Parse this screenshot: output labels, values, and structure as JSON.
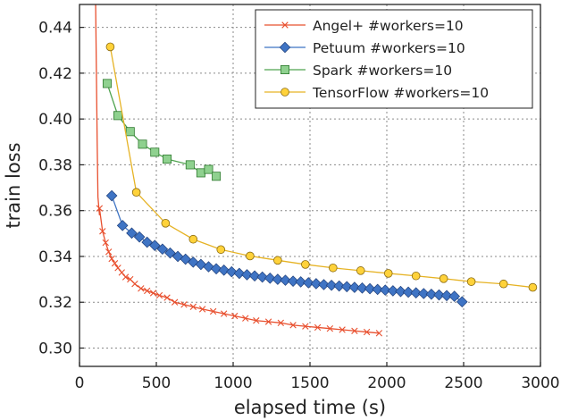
{
  "chart_data": {
    "type": "line",
    "title": "",
    "xlabel": "elapsed time (s)",
    "ylabel": "train loss",
    "xlim": [
      0,
      3000
    ],
    "ylim": [
      0.292,
      0.45
    ],
    "xticks": [
      0,
      500,
      1000,
      1500,
      2000,
      2500,
      3000
    ],
    "xtick_labels": [
      "0",
      "500",
      "1000",
      "1500",
      "2000",
      "2500",
      "3000"
    ],
    "yticks": [
      0.3,
      0.32,
      0.34,
      0.36,
      0.38,
      0.4,
      0.42,
      0.44
    ],
    "ytick_labels": [
      "0.30",
      "0.32",
      "0.34",
      "0.36",
      "0.38",
      "0.40",
      "0.42",
      "0.44"
    ],
    "grid": true,
    "legend_position": "top-right",
    "series": [
      {
        "name": "Angel+ #workers=10",
        "color": "#e8502f",
        "marker": "x",
        "line_x": [
          105,
          110,
          115,
          120,
          130
        ],
        "line_y": [
          0.45,
          0.42,
          0.39,
          0.366,
          0.358
        ],
        "x": [
          130,
          150,
          170,
          190,
          210,
          230,
          250,
          275,
          300,
          330,
          360,
          400,
          440,
          480,
          520,
          570,
          620,
          680,
          740,
          800,
          870,
          940,
          1010,
          1080,
          1150,
          1230,
          1310,
          1390,
          1470,
          1550,
          1630,
          1710,
          1790,
          1870,
          1950
        ],
        "y": [
          0.361,
          0.351,
          0.346,
          0.342,
          0.339,
          0.337,
          0.335,
          0.333,
          0.331,
          0.33,
          0.328,
          0.326,
          0.325,
          0.324,
          0.323,
          0.322,
          0.32,
          0.319,
          0.318,
          0.317,
          0.316,
          0.315,
          0.314,
          0.313,
          0.312,
          0.3115,
          0.311,
          0.31,
          0.3095,
          0.309,
          0.3085,
          0.308,
          0.3075,
          0.307,
          0.3065
        ]
      },
      {
        "name": "Petuum #workers=10",
        "color": "#3f74c4",
        "marker": "diamond",
        "x": [
          210,
          280,
          340,
          390,
          440,
          490,
          540,
          590,
          640,
          690,
          740,
          790,
          840,
          890,
          940,
          990,
          1040,
          1090,
          1140,
          1190,
          1240,
          1290,
          1340,
          1390,
          1440,
          1490,
          1540,
          1590,
          1640,
          1690,
          1740,
          1790,
          1840,
          1890,
          1940,
          1990,
          2040,
          2090,
          2140,
          2190,
          2240,
          2290,
          2340,
          2390,
          2440,
          2490
        ],
        "y": [
          0.3665,
          0.3535,
          0.3502,
          0.3485,
          0.3462,
          0.3448,
          0.3432,
          0.3415,
          0.34,
          0.3388,
          0.3375,
          0.3365,
          0.3355,
          0.3346,
          0.334,
          0.3333,
          0.3326,
          0.332,
          0.3315,
          0.331,
          0.3305,
          0.33,
          0.3296,
          0.3292,
          0.3289,
          0.3285,
          0.3281,
          0.3277,
          0.3274,
          0.3271,
          0.3268,
          0.3265,
          0.3262,
          0.3259,
          0.3256,
          0.3253,
          0.325,
          0.3247,
          0.3244,
          0.3241,
          0.3238,
          0.3235,
          0.3232,
          0.3229,
          0.3226,
          0.3202
        ]
      },
      {
        "name": "Spark #workers=10",
        "color": "#4fa34f",
        "marker": "square",
        "x": [
          180,
          250,
          330,
          410,
          490,
          570,
          720,
          790,
          840,
          890
        ],
        "y": [
          0.4155,
          0.4015,
          0.3945,
          0.389,
          0.3855,
          0.3825,
          0.38,
          0.3765,
          0.378,
          0.375
        ]
      },
      {
        "name": "TensorFlow #workers=10",
        "color": "#e6b325",
        "marker": "circle",
        "x": [
          200,
          370,
          560,
          740,
          920,
          1110,
          1290,
          1470,
          1650,
          1830,
          2010,
          2190,
          2370,
          2550,
          2760,
          2950
        ],
        "y": [
          0.4315,
          0.368,
          0.3545,
          0.3475,
          0.343,
          0.3402,
          0.3383,
          0.3365,
          0.335,
          0.3338,
          0.3326,
          0.3315,
          0.3303,
          0.329,
          0.328,
          0.3265
        ]
      }
    ]
  }
}
